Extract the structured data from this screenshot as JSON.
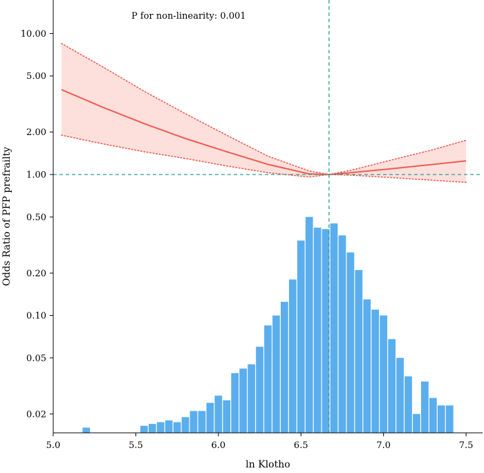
{
  "chart_data": {
    "type": "line",
    "annotation": "P for non-linearity: 0.001",
    "xlabel": "ln Klotho",
    "ylabel": "Odds Ratio of PFP prefrailty",
    "xlim": [
      5.0,
      7.6
    ],
    "ylim": [
      0.0147,
      17.3
    ],
    "y_scale": "log",
    "x_ticks": [
      {
        "value": 5.0,
        "label": "5.0"
      },
      {
        "value": 5.5,
        "label": "5.5"
      },
      {
        "value": 6.0,
        "label": "6.0"
      },
      {
        "value": 6.5,
        "label": "6.5"
      },
      {
        "value": 7.0,
        "label": "7.0"
      },
      {
        "value": 7.5,
        "label": "7.5"
      }
    ],
    "y_ticks": [
      {
        "value": 0.02,
        "label": "0.02"
      },
      {
        "value": 0.05,
        "label": "0.05"
      },
      {
        "value": 0.1,
        "label": "0.10"
      },
      {
        "value": 0.2,
        "label": "0.20"
      },
      {
        "value": 0.5,
        "label": "0.50"
      },
      {
        "value": 1.0,
        "label": "1.00"
      },
      {
        "value": 2.0,
        "label": "2.00"
      },
      {
        "value": 5.0,
        "label": "5.00"
      },
      {
        "value": 10.0,
        "label": "10.00"
      }
    ],
    "reference_lines": {
      "x": 6.67,
      "y": 1.0
    },
    "series": [
      {
        "kind": "odds_ratio_curve",
        "x": [
          5.05,
          5.3,
          5.55,
          5.8,
          6.05,
          6.3,
          6.55,
          6.67,
          6.8,
          7.05,
          7.3,
          7.5
        ],
        "y": [
          4.0,
          3.0,
          2.3,
          1.8,
          1.45,
          1.18,
          1.01,
          1.0,
          1.03,
          1.1,
          1.18,
          1.25
        ],
        "lower": [
          1.9,
          1.65,
          1.45,
          1.3,
          1.15,
          1.03,
          0.96,
          1.0,
          0.99,
          0.95,
          0.91,
          0.88
        ],
        "upper": [
          8.5,
          5.8,
          3.9,
          2.7,
          1.9,
          1.35,
          1.06,
          1.0,
          1.07,
          1.27,
          1.5,
          1.75
        ],
        "color": "#f05a50",
        "band_color": "#fde0dc"
      },
      {
        "kind": "histogram",
        "color": "#5aaeee",
        "bin_centers": [
          5.2,
          5.55,
          5.6,
          5.65,
          5.7,
          5.75,
          5.8,
          5.85,
          5.9,
          5.95,
          6.0,
          6.05,
          6.1,
          6.15,
          6.2,
          6.25,
          6.3,
          6.35,
          6.4,
          6.45,
          6.5,
          6.55,
          6.6,
          6.65,
          6.7,
          6.75,
          6.8,
          6.85,
          6.9,
          6.95,
          7.0,
          7.05,
          7.1,
          7.15,
          7.2,
          7.25,
          7.3,
          7.35,
          7.4
        ],
        "values": [
          0.016,
          0.0165,
          0.017,
          0.0175,
          0.018,
          0.0175,
          0.019,
          0.021,
          0.021,
          0.024,
          0.027,
          0.025,
          0.039,
          0.042,
          0.045,
          0.06,
          0.085,
          0.1,
          0.125,
          0.18,
          0.34,
          0.5,
          0.42,
          0.41,
          0.45,
          0.37,
          0.28,
          0.21,
          0.13,
          0.11,
          0.1,
          0.068,
          0.05,
          0.037,
          0.02,
          0.034,
          0.026,
          0.023,
          0.023
        ]
      }
    ]
  }
}
